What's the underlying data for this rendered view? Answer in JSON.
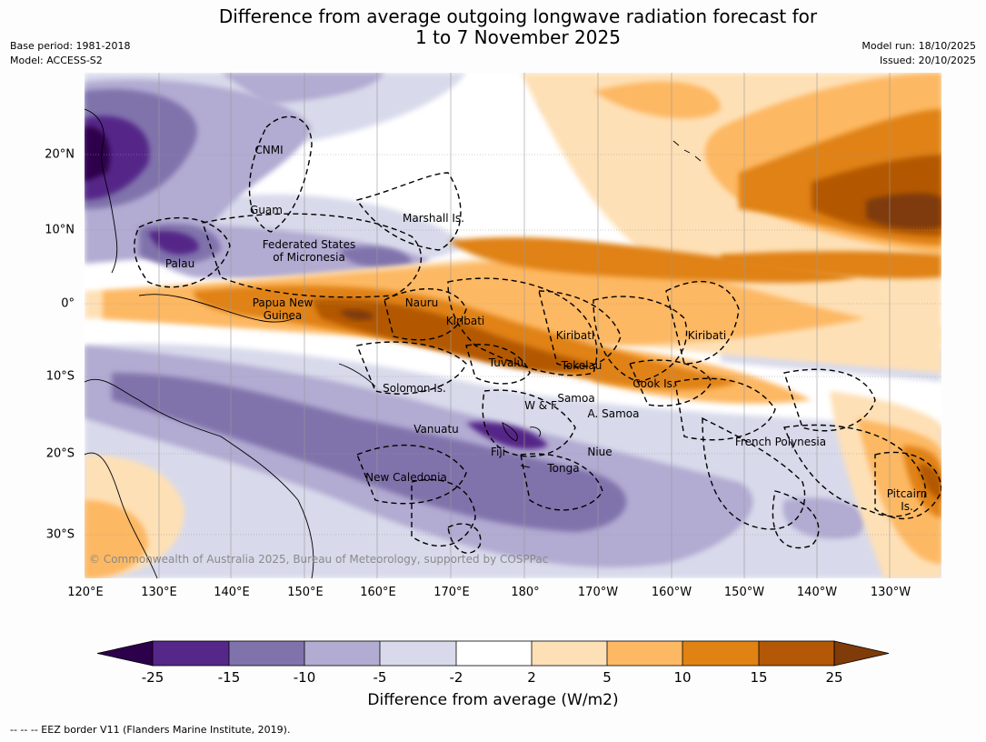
{
  "header": {
    "title_line1": "Difference from average outgoing longwave radiation forecast for",
    "title_line2": "1 to 7 November 2025",
    "base_period": "Base period: 1981-2018",
    "model": "Model: ACCESS-S2",
    "model_run": "Model run: 18/10/2025",
    "issued": "Issued: 20/10/2025"
  },
  "map": {
    "longitude_labels": [
      "120°E",
      "130°E",
      "140°E",
      "150°E",
      "160°E",
      "170°E",
      "180°",
      "170°W",
      "160°W",
      "150°W",
      "140°W",
      "130°W"
    ],
    "latitude_labels": [
      "20°N",
      "10°N",
      "0°",
      "10°S",
      "20°S",
      "30°S"
    ],
    "copyright": "© Commonwealth of Australia 2025, Bureau of Meteorology, supported by COSPPac",
    "regions": {
      "cnmi": "CNMI",
      "guam": "Guam",
      "marshall": "Marshall Is.",
      "fsm_1": "Federated States",
      "fsm_2": "of Micronesia",
      "palau": "Palau",
      "png_1": "Papua New",
      "png_2": "Guinea",
      "nauru": "Nauru",
      "kiribati_w": "Kiribati",
      "kiribati_c": "Kiribati",
      "kiribati_e": "Kiribati",
      "tuvalu": "Tuvalu",
      "tokelau": "Tokelau",
      "cook": "Cook Is.",
      "solomon": "Solomon Is.",
      "wf": "W & F",
      "samoa": "Samoa",
      "asamoa": "A. Samoa",
      "vanuatu": "Vanuatu",
      "fiji": "Fiji",
      "niue": "Niue",
      "tonga": "Tonga",
      "french_polynesia": "French Polynesia",
      "new_caledonia": "New Caledonia",
      "pitcairn_1": "Pitcairn",
      "pitcairn_2": "Is."
    }
  },
  "legend": {
    "ticks": [
      "-25",
      "-15",
      "-10",
      "-5",
      "-2",
      "2",
      "5",
      "10",
      "15",
      "25"
    ],
    "colors": [
      "#2d004b",
      "#542788",
      "#8073ac",
      "#b2abd2",
      "#d8daeb",
      "#ffffff",
      "#fee0b6",
      "#fdb863",
      "#e08214",
      "#b35806",
      "#7f3b08"
    ],
    "label": "Difference from average (W/m2)"
  },
  "footnote": "--  --  -- EEZ border V11 (Flanders Marine Institute, 2019)."
}
